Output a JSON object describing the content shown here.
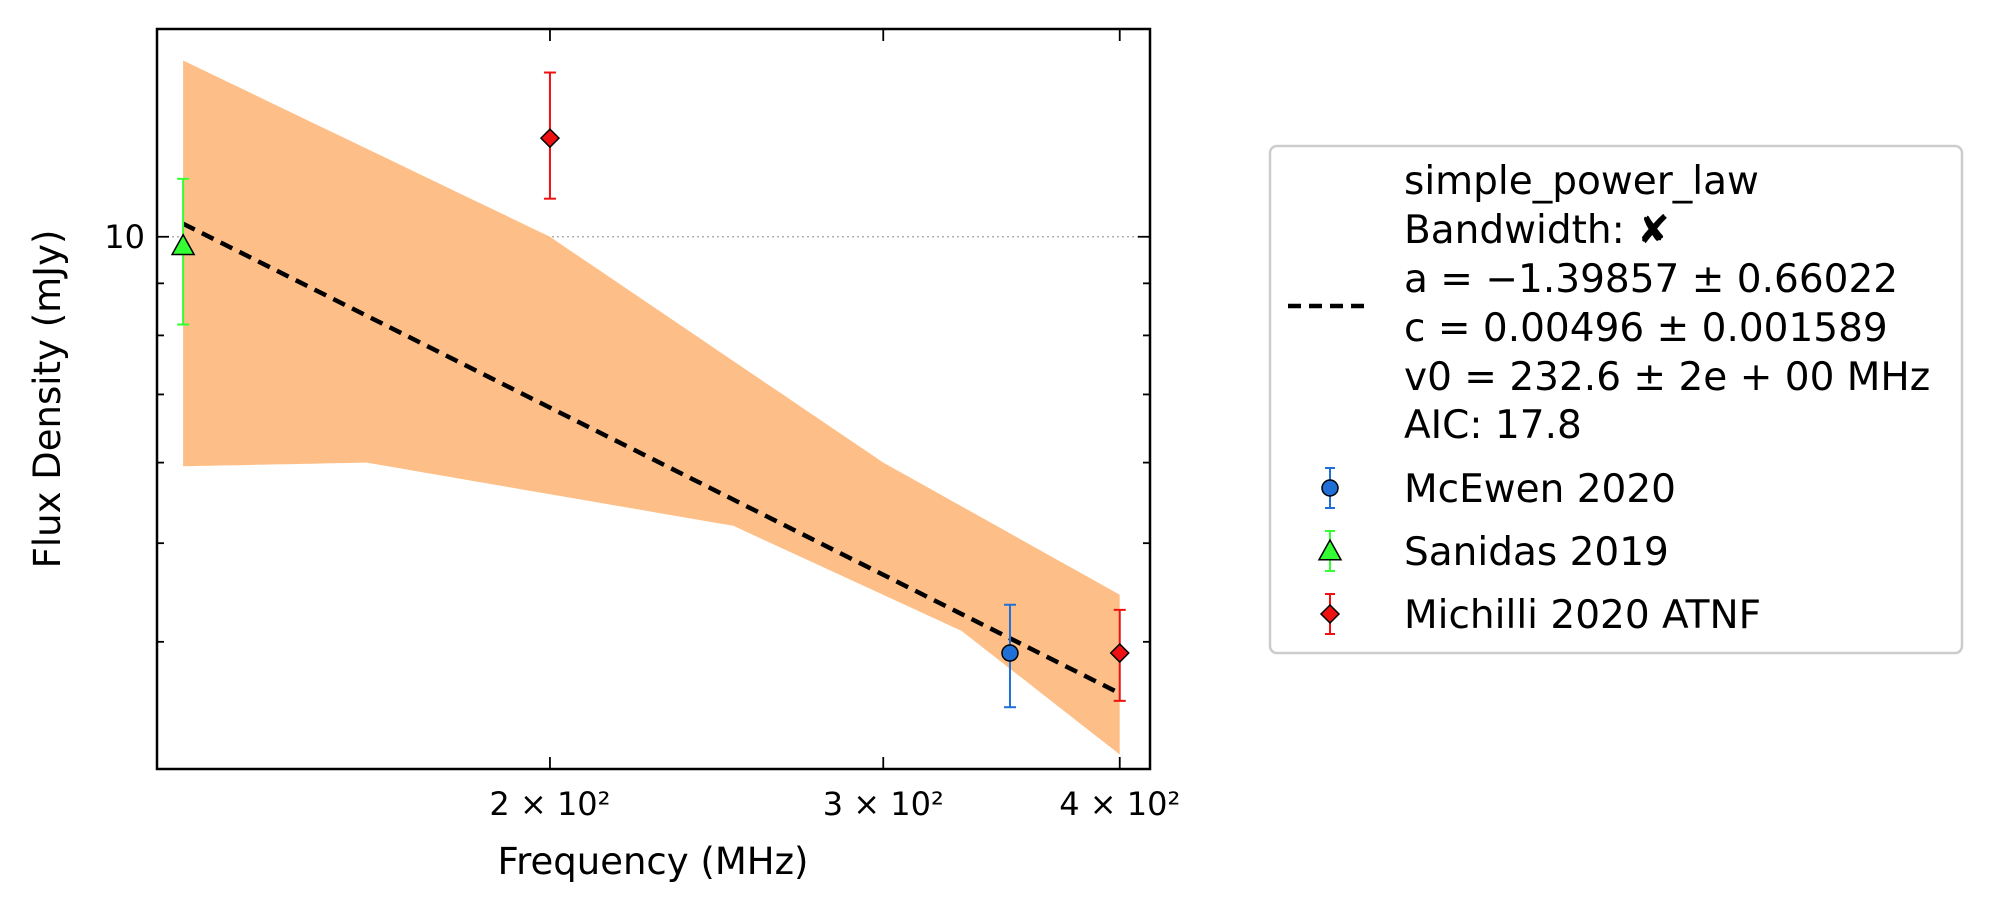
{
  "chart_data": {
    "type": "scatter",
    "xlabel": "Frequency (MHz)",
    "ylabel": "Flux Density (mJy)",
    "xscale": "log",
    "yscale": "log",
    "xlim": [
      124,
      415
    ],
    "ylim": [
      3.0,
      16.0
    ],
    "x_ticks": [
      {
        "value": 200,
        "label": "2 × 10²"
      },
      {
        "value": 300,
        "label": "3 × 10²"
      },
      {
        "value": 400,
        "label": "4 × 10²"
      }
    ],
    "y_ticks": [
      {
        "value": 10,
        "label": "10"
      }
    ],
    "y_gridline": 10,
    "legend": {
      "placement": "outside right"
    },
    "fit": {
      "model_name": "simple_power_law",
      "bandwidth_text": "Bandwidth: ✘",
      "param_a": "a = −1.39857 ± 0.66022",
      "param_c": "c = 0.00496 ± 0.001589",
      "param_v0": "v0 = 232.6 ± 2e + 00 MHz",
      "aic": "AIC: 17.8",
      "line": [
        [
          128,
          10.3
        ],
        [
          400,
          3.56
        ]
      ],
      "band_upper": [
        [
          128,
          14.9
        ],
        [
          200,
          10.0
        ],
        [
          300,
          6.0
        ],
        [
          400,
          4.45
        ]
      ],
      "band_lower": [
        [
          128,
          5.95
        ],
        [
          160,
          6.0
        ],
        [
          250,
          5.2
        ],
        [
          330,
          4.1
        ],
        [
          400,
          3.1
        ]
      ],
      "line_color": "#000000",
      "band_color": "#fdbf87"
    },
    "series": [
      {
        "name": "McEwen 2020",
        "marker": "circle",
        "color": "#1f6fd6",
        "points": [
          {
            "x": 350,
            "y": 3.9,
            "yerr_low": 0.45,
            "yerr_high": 0.45
          }
        ]
      },
      {
        "name": "Sanidas 2019",
        "marker": "triangle",
        "color": "#33ff33",
        "points": [
          {
            "x": 128,
            "y": 9.8,
            "yerr_low": 1.6,
            "yerr_high": 1.6
          }
        ]
      },
      {
        "name": "Michilli 2020 ATNF",
        "marker": "diamond",
        "color": "#ee1111",
        "points": [
          {
            "x": 200,
            "y": 12.5,
            "yerr_low": 1.6,
            "yerr_high": 2.0
          },
          {
            "x": 400,
            "y": 3.9,
            "yerr_low": 0.4,
            "yerr_high": 0.4
          }
        ]
      }
    ]
  }
}
